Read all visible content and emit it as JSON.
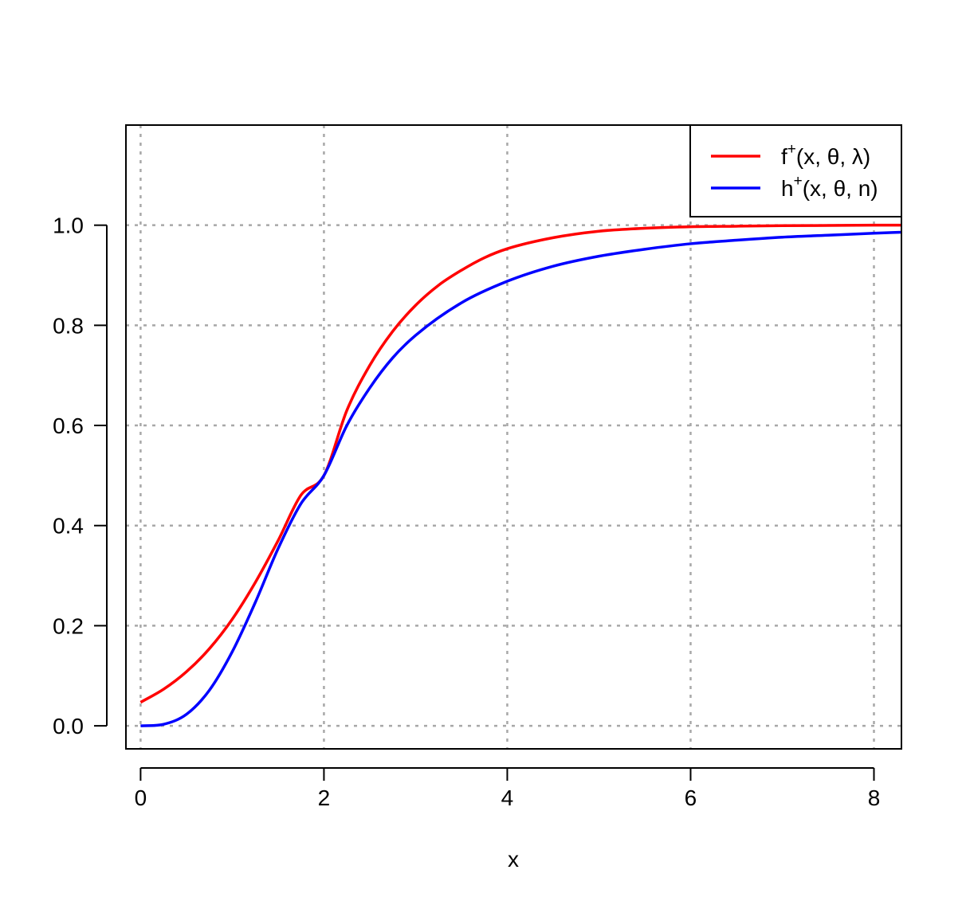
{
  "chart_data": {
    "type": "line",
    "title": "",
    "xlabel": "x",
    "ylabel": "",
    "xlim": [
      -0.16,
      8.3
    ],
    "ylim": [
      -0.046,
      1.2
    ],
    "x_ticks": [
      0,
      2,
      4,
      6,
      8
    ],
    "y_ticks": [
      0.0,
      0.2,
      0.4,
      0.6,
      0.8,
      1.0
    ],
    "x_tick_labels": [
      "0",
      "2",
      "4",
      "6",
      "8"
    ],
    "y_tick_labels": [
      "0.0",
      "0.2",
      "0.4",
      "0.6",
      "0.8",
      "1.0"
    ],
    "grid": true,
    "legend_position": "top-right",
    "series": [
      {
        "name": "f⁺(x, θ, λ)",
        "name_base": "f",
        "name_sup": "+",
        "name_rest": "(x, θ, λ)",
        "color": "#ff0000",
        "x": [
          0,
          0.25,
          0.5,
          0.75,
          1.0,
          1.25,
          1.5,
          1.75,
          2.0,
          2.25,
          2.5,
          2.75,
          3.0,
          3.25,
          3.5,
          3.75,
          4.0,
          4.5,
          5.0,
          5.5,
          6.0,
          6.5,
          7.0,
          7.5,
          8.0,
          8.3
        ],
        "y": [
          0.047,
          0.073,
          0.108,
          0.154,
          0.213,
          0.286,
          0.37,
          0.461,
          0.5,
          0.63,
          0.72,
          0.788,
          0.84,
          0.88,
          0.91,
          0.935,
          0.953,
          0.975,
          0.988,
          0.994,
          0.997,
          0.998,
          0.999,
          0.9995,
          1.0,
          1.0
        ]
      },
      {
        "name": "h⁺(x, θ, n)",
        "name_base": "h",
        "name_sup": "+",
        "name_rest": "(x, θ, n)",
        "color": "#0000ff",
        "x": [
          0,
          0.25,
          0.5,
          0.75,
          1.0,
          1.25,
          1.5,
          1.75,
          2.0,
          2.25,
          2.5,
          2.75,
          3.0,
          3.5,
          4.0,
          4.5,
          5.0,
          5.5,
          6.0,
          6.5,
          7.0,
          7.5,
          8.0,
          8.3
        ],
        "y": [
          0.0,
          0.003,
          0.023,
          0.071,
          0.148,
          0.246,
          0.354,
          0.444,
          0.5,
          0.6,
          0.675,
          0.735,
          0.78,
          0.845,
          0.888,
          0.918,
          0.938,
          0.952,
          0.963,
          0.97,
          0.976,
          0.98,
          0.984,
          0.986
        ]
      }
    ]
  }
}
